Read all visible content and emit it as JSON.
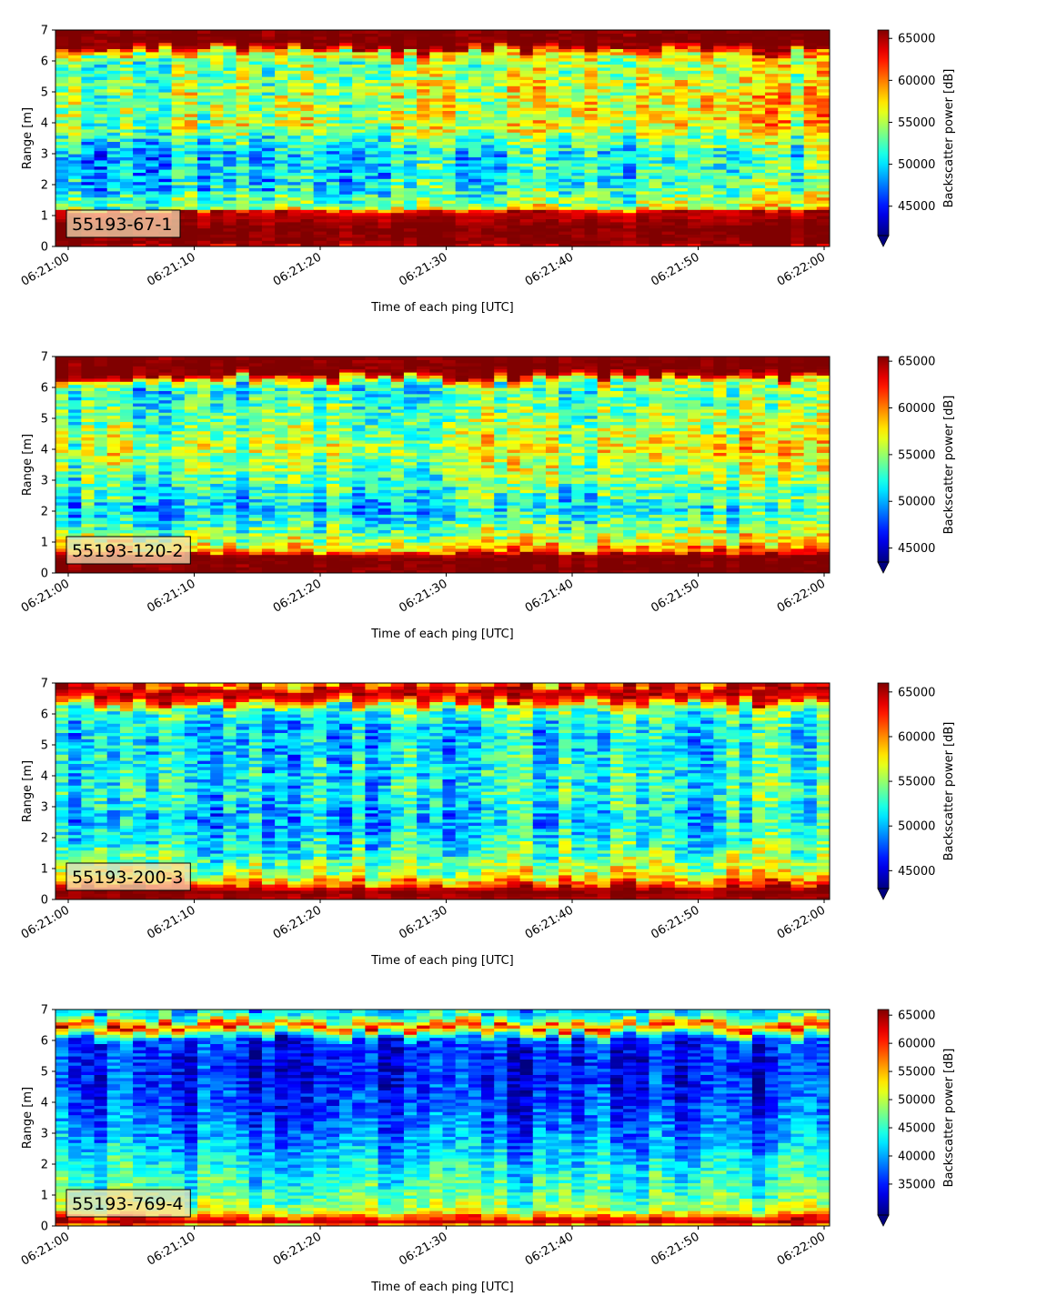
{
  "chart_data": [
    {
      "type": "heatmap",
      "label": "55193-67-1",
      "xlabel": "Time of each ping [UTC]",
      "ylabel": "Range [m]",
      "x_ticks": [
        "06:21:00",
        "06:21:10",
        "06:21:20",
        "06:21:30",
        "06:21:40",
        "06:21:50",
        "06:22:00"
      ],
      "y_ticks": [
        "0",
        "1",
        "2",
        "3",
        "4",
        "5",
        "6",
        "7"
      ],
      "ylim": [
        0,
        7
      ],
      "colorbar": {
        "label": "Backscatter power [dB]",
        "vmin": 41500,
        "vmax": 66000,
        "ticks": [
          45000,
          50000,
          55000,
          60000,
          65000
        ],
        "colormap": "jet",
        "extend": "min"
      },
      "profile": [
        {
          "r": 0.0,
          "v": 0.74
        },
        {
          "r": 0.05,
          "v": 0.98
        },
        {
          "r": 0.6,
          "v": 1.0
        },
        {
          "r": 1.1,
          "v": 0.92
        },
        {
          "r": 1.25,
          "v": 0.45
        },
        {
          "r": 2.0,
          "v": 0.3
        },
        {
          "r": 3.0,
          "v": 0.27
        },
        {
          "r": 4.0,
          "v": 0.5
        },
        {
          "r": 5.0,
          "v": 0.48
        },
        {
          "r": 6.0,
          "v": 0.42
        },
        {
          "r": 6.3,
          "v": 0.6
        },
        {
          "r": 6.5,
          "v": 1.0
        },
        {
          "r": 7.0,
          "v": 1.0
        }
      ],
      "trend": 0.16,
      "noise": 0.18
    },
    {
      "type": "heatmap",
      "label": "55193-120-2",
      "xlabel": "Time of each ping [UTC]",
      "ylabel": "Range [m]",
      "x_ticks": [
        "06:21:00",
        "06:21:10",
        "06:21:20",
        "06:21:30",
        "06:21:40",
        "06:21:50",
        "06:22:00"
      ],
      "y_ticks": [
        "0",
        "1",
        "2",
        "3",
        "4",
        "5",
        "6",
        "7"
      ],
      "ylim": [
        0,
        7
      ],
      "colorbar": {
        "label": "Backscatter power [dB]",
        "vmin": 43500,
        "vmax": 65500,
        "ticks": [
          45000,
          50000,
          55000,
          60000,
          65000
        ],
        "colormap": "jet",
        "extend": "min"
      },
      "profile": [
        {
          "r": 0.0,
          "v": 1.0
        },
        {
          "r": 0.55,
          "v": 1.0
        },
        {
          "r": 0.7,
          "v": 0.7
        },
        {
          "r": 1.0,
          "v": 0.55
        },
        {
          "r": 2.0,
          "v": 0.3
        },
        {
          "r": 3.0,
          "v": 0.42
        },
        {
          "r": 4.0,
          "v": 0.55
        },
        {
          "r": 5.0,
          "v": 0.45
        },
        {
          "r": 6.0,
          "v": 0.38
        },
        {
          "r": 6.25,
          "v": 0.55
        },
        {
          "r": 6.45,
          "v": 1.0
        },
        {
          "r": 7.0,
          "v": 1.0
        }
      ],
      "trend": 0.08,
      "noise": 0.17
    },
    {
      "type": "heatmap",
      "label": "55193-200-3",
      "xlabel": "Time of each ping [UTC]",
      "ylabel": "Range [m]",
      "x_ticks": [
        "06:21:00",
        "06:21:10",
        "06:21:20",
        "06:21:30",
        "06:21:40",
        "06:21:50",
        "06:22:00"
      ],
      "y_ticks": [
        "0",
        "1",
        "2",
        "3",
        "4",
        "5",
        "6",
        "7"
      ],
      "ylim": [
        0,
        7
      ],
      "colorbar": {
        "label": "Backscatter power [dB]",
        "vmin": 43000,
        "vmax": 66000,
        "ticks": [
          45000,
          50000,
          55000,
          60000,
          65000
        ],
        "colormap": "jet",
        "extend": "min"
      },
      "profile": [
        {
          "r": 0.0,
          "v": 0.95
        },
        {
          "r": 0.3,
          "v": 1.0
        },
        {
          "r": 0.5,
          "v": 0.75
        },
        {
          "r": 0.8,
          "v": 0.55
        },
        {
          "r": 1.5,
          "v": 0.4
        },
        {
          "r": 2.5,
          "v": 0.28
        },
        {
          "r": 3.5,
          "v": 0.36
        },
        {
          "r": 4.5,
          "v": 0.32
        },
        {
          "r": 5.5,
          "v": 0.3
        },
        {
          "r": 6.2,
          "v": 0.42
        },
        {
          "r": 6.5,
          "v": 0.85
        },
        {
          "r": 6.75,
          "v": 0.98
        },
        {
          "r": 7.0,
          "v": 0.7
        }
      ],
      "trend": 0.08,
      "noise": 0.16
    },
    {
      "type": "heatmap",
      "label": "55193-769-4",
      "xlabel": "Time of each ping [UTC]",
      "ylabel": "Range [m]",
      "x_ticks": [
        "06:21:00",
        "06:21:10",
        "06:21:20",
        "06:21:30",
        "06:21:40",
        "06:21:50",
        "06:22:00"
      ],
      "y_ticks": [
        "0",
        "1",
        "2",
        "3",
        "4",
        "5",
        "6",
        "7"
      ],
      "ylim": [
        0,
        7
      ],
      "colorbar": {
        "label": "Backscatter power [dB]",
        "vmin": 29500,
        "vmax": 66000,
        "ticks": [
          35000,
          40000,
          45000,
          50000,
          55000,
          60000,
          65000
        ],
        "colormap": "jet",
        "extend": "min"
      },
      "profile": [
        {
          "r": 0.0,
          "v": 0.6
        },
        {
          "r": 0.15,
          "v": 0.95
        },
        {
          "r": 0.3,
          "v": 0.78
        },
        {
          "r": 0.5,
          "v": 0.55
        },
        {
          "r": 1.0,
          "v": 0.45
        },
        {
          "r": 2.0,
          "v": 0.36
        },
        {
          "r": 3.0,
          "v": 0.25
        },
        {
          "r": 4.0,
          "v": 0.18
        },
        {
          "r": 5.0,
          "v": 0.14
        },
        {
          "r": 6.0,
          "v": 0.16
        },
        {
          "r": 6.3,
          "v": 0.55
        },
        {
          "r": 6.45,
          "v": 0.85
        },
        {
          "r": 6.7,
          "v": 0.45
        },
        {
          "r": 7.0,
          "v": 0.3
        }
      ],
      "trend": 0.0,
      "noise": 0.12
    }
  ]
}
